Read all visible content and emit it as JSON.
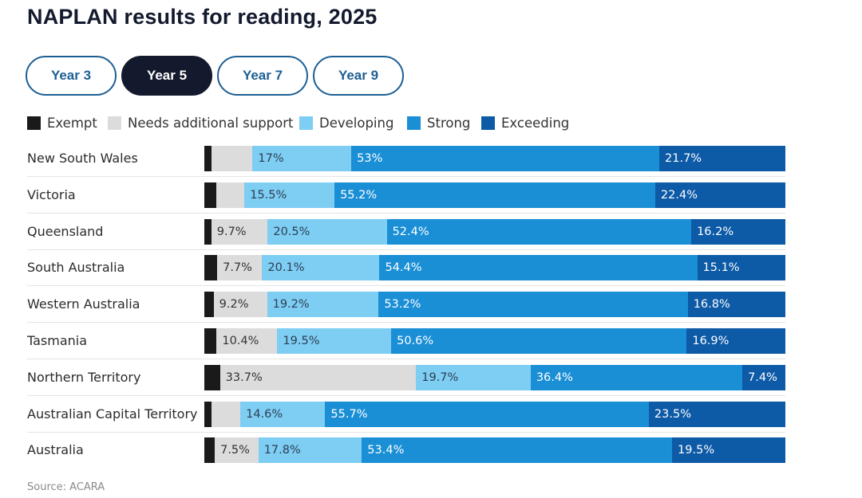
{
  "title": "NAPLAN results for reading, 2025",
  "tabs": [
    {
      "label": "Year 3",
      "active": false
    },
    {
      "label": "Year 5",
      "active": true
    },
    {
      "label": "Year 7",
      "active": false
    },
    {
      "label": "Year 9",
      "active": false
    }
  ],
  "source": "Source: ACARA",
  "chart_data": {
    "type": "bar",
    "orientation": "horizontal",
    "stacked": true,
    "percent_stacked": true,
    "categories": [
      "New South Wales",
      "Victoria",
      "Queensland",
      "South Australia",
      "Western Australia",
      "Tasmania",
      "Northern Territory",
      "Australian Capital Territory",
      "Australia"
    ],
    "series": [
      {
        "name": "Exempt",
        "color": "#1a1a1a",
        "values": [
          1.3,
          2.1,
          1.2,
          2.2,
          1.6,
          2.1,
          2.7,
          1.2,
          1.8
        ]
      },
      {
        "name": "Needs additional support",
        "color": "#dcdcdc",
        "values": [
          7.0,
          4.8,
          9.7,
          7.7,
          9.2,
          10.4,
          33.7,
          5.0,
          7.5
        ]
      },
      {
        "name": "Developing",
        "color": "#7ecdf3",
        "values": [
          17,
          15.5,
          20.5,
          20.1,
          19.2,
          19.5,
          19.7,
          14.6,
          17.8
        ]
      },
      {
        "name": "Strong",
        "color": "#1a8fd6",
        "values": [
          53,
          55.2,
          52.4,
          54.4,
          53.2,
          50.6,
          36.4,
          55.7,
          53.4
        ]
      },
      {
        "name": "Exceeding",
        "color": "#0d5aa7",
        "values": [
          21.7,
          22.4,
          16.2,
          15.1,
          16.8,
          16.9,
          7.4,
          23.5,
          19.5
        ]
      }
    ],
    "data_labels": [
      [
        "",
        "",
        "17%",
        "53%",
        "21.7%"
      ],
      [
        "",
        "",
        "15.5%",
        "55.2%",
        "22.4%"
      ],
      [
        "",
        "9.7%",
        "20.5%",
        "52.4%",
        "16.2%"
      ],
      [
        "",
        "7.7%",
        "20.1%",
        "54.4%",
        "15.1%"
      ],
      [
        "",
        "9.2%",
        "19.2%",
        "53.2%",
        "16.8%"
      ],
      [
        "",
        "10.4%",
        "19.5%",
        "50.6%",
        "16.9%"
      ],
      [
        "",
        "33.7%",
        "19.7%",
        "36.4%",
        "7.4%"
      ],
      [
        "",
        "",
        "14.6%",
        "55.7%",
        "23.5%"
      ],
      [
        "",
        "7.5%",
        "17.8%",
        "53.4%",
        "19.5%"
      ]
    ],
    "xlim": [
      0,
      100
    ],
    "legend_position": "top-left",
    "grid": false
  }
}
